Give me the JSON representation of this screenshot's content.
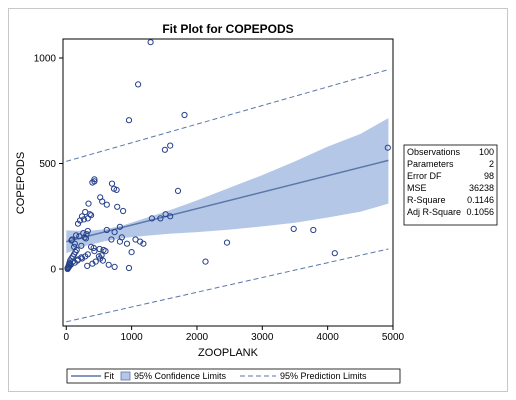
{
  "chart_data": {
    "type": "scatter",
    "title": "Fit Plot for COPEPODS",
    "xlabel": "ZOOPLANK",
    "ylabel": "COPEPODS",
    "xlim": [
      -50,
      5000
    ],
    "ylim": [
      -270,
      1090
    ],
    "xticks": [
      0,
      1000,
      2000,
      3000,
      4000,
      5000
    ],
    "yticks": [
      0,
      500,
      1000
    ],
    "xtick_labels": [
      "0",
      "1000",
      "2000",
      "3000",
      "4000",
      "5000"
    ],
    "ytick_labels": [
      "0",
      "500",
      "1000"
    ],
    "grid": false,
    "fit": {
      "name": "Fit",
      "color": "#5a77a8",
      "x": [
        0,
        4930
      ],
      "y": [
        130,
        515
      ]
    },
    "confidence_band": {
      "name": "95% Confidence Limits",
      "color": "#b4c7e7",
      "x": [
        0,
        300,
        600,
        900,
        1200,
        1600,
        2000,
        2500,
        3000,
        3500,
        4000,
        4500,
        4930
      ],
      "lower": [
        75,
        110,
        133,
        148,
        157,
        168,
        175,
        187,
        202,
        219,
        244,
        271,
        310
      ],
      "upper": [
        183,
        180,
        188,
        210,
        240,
        280,
        325,
        385,
        445,
        510,
        580,
        640,
        715
      ]
    },
    "prediction_band": {
      "name": "95% Prediction Limits",
      "color": "#5a77a8",
      "x": [
        0,
        4930
      ],
      "lower": [
        -250,
        95
      ],
      "upper": [
        510,
        945
      ]
    },
    "points": {
      "color": "#26408b",
      "x": [
        1290,
        1100,
        1810,
        960,
        1590,
        1510,
        4920,
        430,
        430,
        400,
        700,
        730,
        770,
        1710,
        520,
        550,
        620,
        340,
        290,
        360,
        780,
        870,
        380,
        330,
        270,
        210,
        240,
        180,
        620,
        820,
        1310,
        1520,
        1590,
        1440,
        740,
        330,
        310,
        260,
        150,
        200,
        280,
        300,
        90,
        80,
        130,
        120,
        230,
        380,
        420,
        510,
        570,
        600,
        690,
        820,
        850,
        930,
        1000,
        1130,
        1180,
        3480,
        3780,
        2460,
        4110,
        2130,
        960,
        1060,
        500,
        560,
        650,
        740,
        20,
        30,
        40,
        50,
        60,
        80,
        100,
        120,
        140,
        160,
        60,
        100,
        180,
        230,
        320,
        400,
        450,
        520,
        540,
        430,
        330,
        290,
        240,
        170,
        130,
        70,
        50,
        40,
        30,
        20
      ],
      "y": [
        1075,
        875,
        730,
        705,
        585,
        565,
        575,
        425,
        415,
        410,
        405,
        380,
        375,
        370,
        340,
        320,
        305,
        310,
        270,
        260,
        295,
        275,
        255,
        240,
        235,
        230,
        250,
        215,
        185,
        200,
        240,
        260,
        250,
        240,
        175,
        180,
        165,
        170,
        160,
        155,
        150,
        145,
        140,
        135,
        120,
        105,
        110,
        105,
        100,
        95,
        90,
        85,
        140,
        130,
        150,
        120,
        80,
        130,
        120,
        190,
        185,
        125,
        75,
        35,
        5,
        140,
        60,
        40,
        20,
        10,
        5,
        10,
        20,
        30,
        40,
        50,
        60,
        70,
        80,
        90,
        25,
        35,
        45,
        55,
        15,
        25,
        35,
        50,
        65,
        85,
        70,
        60,
        50,
        40,
        30,
        20,
        15,
        10,
        5,
        0
      ]
    }
  },
  "stats_box": {
    "rows": [
      {
        "label": "Observations",
        "value": "100"
      },
      {
        "label": "Parameters",
        "value": "2"
      },
      {
        "label": "Error DF",
        "value": "98"
      },
      {
        "label": "MSE",
        "value": "36238"
      },
      {
        "label": "R-Square",
        "value": "0.1146"
      },
      {
        "label": "Adj R-Square",
        "value": "0.1056"
      }
    ]
  },
  "legend": {
    "items": [
      {
        "label": "Fit"
      },
      {
        "label": "95% Confidence Limits"
      },
      {
        "label": "95% Prediction Limits"
      }
    ]
  }
}
